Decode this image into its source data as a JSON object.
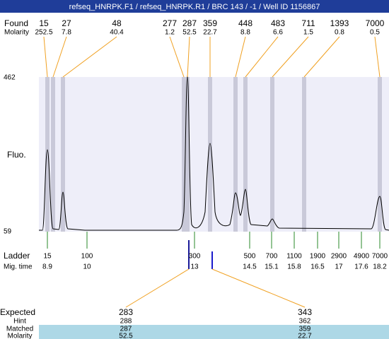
{
  "header": {
    "title": "refseq_HNRPK.F1 / refseq_HNRPK.R1 / BRC 143 / -1 / Well ID 1156867"
  },
  "found": {
    "label": "Found",
    "sizes": [
      15,
      27,
      48,
      277,
      287,
      359,
      448,
      483,
      711,
      1393,
      7000
    ]
  },
  "molarity": {
    "label": "Molarity",
    "values": [
      252.5,
      7.8,
      40.4,
      1.2,
      52.5,
      22.7,
      8.8,
      6.6,
      1.5,
      0.8,
      0.5
    ]
  },
  "y_axis": {
    "label": "Fluo.",
    "top": 462,
    "bottom": 59
  },
  "ladder": {
    "label": "Ladder",
    "sizes": [
      15,
      100,
      300,
      500,
      700,
      1100,
      1900,
      2900,
      4900,
      7000
    ]
  },
  "mig_time": {
    "label": "Mig. time",
    "values": [
      8.9,
      10,
      13,
      14.5,
      15.1,
      15.8,
      16.5,
      17,
      17.6,
      18.2
    ]
  },
  "expected": {
    "label": "Expected",
    "values": [
      283,
      343
    ]
  },
  "hint": {
    "label": "Hint",
    "values": [
      288,
      362
    ]
  },
  "matched": {
    "label": "Matched",
    "values": [
      287,
      359
    ]
  },
  "matched_molarity": {
    "label": "Molarity",
    "values": [
      52.5,
      22.7
    ]
  }
}
